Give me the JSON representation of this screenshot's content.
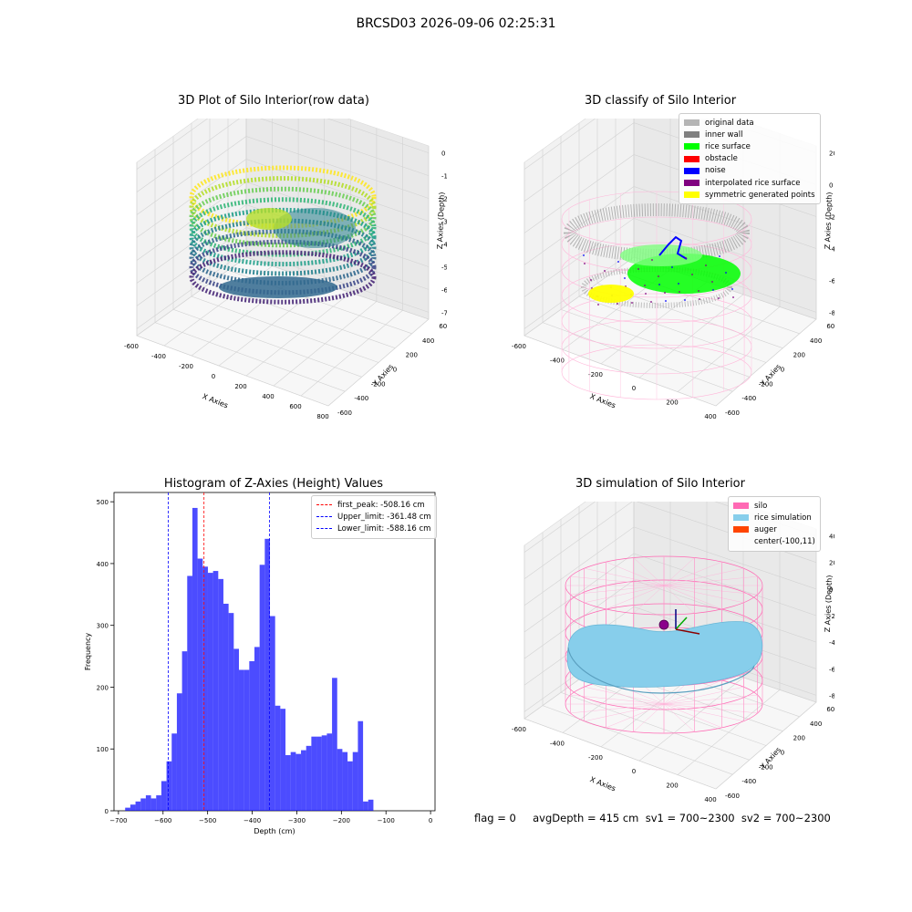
{
  "suptitle": "BRCSD03 2026-09-06 02:25:31",
  "footer": "flag = 0     avgDepth = 415 cm  sv1 = 700~2300  sv2 = 700~2300",
  "chart_data": [
    {
      "type": "scatter",
      "title": "3D Plot of Silo Interior(row data)",
      "xlabel": "X Axies",
      "ylabel": "Y Axies",
      "zlabel": "Z Axies (Depth)",
      "xticks": [
        "-600",
        "-400",
        "-200",
        "0",
        "200",
        "400",
        "600",
        "800"
      ],
      "yticks": [
        "-600",
        "-400",
        "-200",
        "0",
        "200",
        "400",
        "600"
      ],
      "zticks": [
        "0",
        "-100",
        "-200",
        "-300",
        "-400",
        "-500",
        "-600",
        "-700"
      ],
      "colormap": "viridis"
    },
    {
      "type": "scatter",
      "title": "3D classify of Silo Interior",
      "xlabel": "X Axies",
      "ylabel": "Y Axies",
      "zlabel": "Z Axies (Depth)",
      "xticks": [
        "-600",
        "-400",
        "-200",
        "0",
        "200",
        "400"
      ],
      "yticks": [
        "-600",
        "-400",
        "-200",
        "0",
        "200",
        "400",
        "600"
      ],
      "zticks": [
        "200",
        "0",
        "-200",
        "-400",
        "-600",
        "-800"
      ],
      "legend": [
        {
          "label": "original data",
          "color": "#b4b4b4"
        },
        {
          "label": "inner wall",
          "color": "#808080"
        },
        {
          "label": "rice surface",
          "color": "#00ff00"
        },
        {
          "label": "obstacle",
          "color": "#ff0000"
        },
        {
          "label": "noise",
          "color": "#0000ff"
        },
        {
          "label": "interpolated rice surface",
          "color": "#800080"
        },
        {
          "label": "symmetric generated points",
          "color": "#ffff00"
        }
      ],
      "legend_position": "top-right"
    },
    {
      "type": "bar",
      "title": "Histogram of Z-Axies (Height) Values",
      "xlabel": "Depth (cm)",
      "ylabel": "Frequency",
      "bin_start": -685,
      "bin_width": 11.6,
      "values": [
        5,
        10,
        15,
        20,
        25,
        20,
        25,
        48,
        80,
        125,
        190,
        258,
        380,
        490,
        408,
        395,
        385,
        388,
        375,
        335,
        320,
        262,
        228,
        228,
        242,
        265,
        398,
        440,
        315,
        170,
        165,
        90,
        95,
        92,
        98,
        105,
        120,
        120,
        122,
        125,
        215,
        100,
        95,
        80,
        95,
        145,
        15,
        18
      ],
      "xlim": [
        -710,
        10
      ],
      "ylim": [
        0,
        515
      ],
      "xticks": [
        -700,
        -600,
        -500,
        -400,
        -300,
        -200,
        -100,
        0
      ],
      "yticks": [
        0,
        100,
        200,
        300,
        400,
        500
      ],
      "color": "#0000ff",
      "vlines": [
        {
          "x": -508.16,
          "label": "first_peak: -508.16 cm",
          "color": "#ff0000"
        },
        {
          "x": -361.48,
          "label": "Upper_limit: -361.48 cm",
          "color": "#0000ff"
        },
        {
          "x": -588.16,
          "label": "Lower_limit: -588.16 cm",
          "color": "#0000ff"
        }
      ],
      "legend_position": "top-right"
    },
    {
      "type": "surface",
      "title": "3D simulation of Silo Interior",
      "xlabel": "X Axies",
      "ylabel": "Y Axies",
      "zlabel": "Z Axies (Depth)",
      "xticks": [
        "-600",
        "-400",
        "-200",
        "0",
        "200",
        "400"
      ],
      "yticks": [
        "-600",
        "-400",
        "-200",
        "0",
        "200",
        "400",
        "600"
      ],
      "zticks": [
        "400",
        "200",
        "0",
        "-200",
        "-400",
        "-600",
        "-800"
      ],
      "legend": [
        {
          "label": "silo",
          "color": "#ff69b4"
        },
        {
          "label": "rice simulation",
          "color": "#87ceeb"
        },
        {
          "label": "auger",
          "color": "#ff4500"
        },
        {
          "label": "center(-100,11)",
          "color": ""
        }
      ],
      "legend_position": "top-right"
    }
  ]
}
